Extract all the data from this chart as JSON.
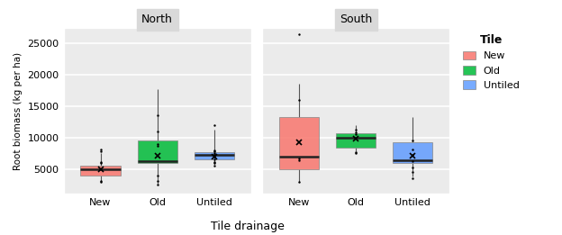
{
  "title_left": "North",
  "title_right": "South",
  "xlabel": "Tile drainage",
  "ylabel": "Root biomass (kg per ha)",
  "legend_title": "Tile",
  "legend_labels": [
    "New",
    "Old",
    "Untiled"
  ],
  "categories": [
    "New",
    "Old",
    "Untiled"
  ],
  "colors": {
    "New": "#F8766D",
    "Old": "#00BA38",
    "Untiled": "#619CFF"
  },
  "north": {
    "New": {
      "whislo": 2900,
      "q1": 3900,
      "med": 4950,
      "q3": 5500,
      "whishi": 7500,
      "mean": 4900,
      "fliers": [
        2900,
        3100,
        5900,
        6100,
        7800,
        8100
      ]
    },
    "Old": {
      "whislo": 2600,
      "q1": 6000,
      "med": 6200,
      "q3": 9500,
      "whishi": 17700,
      "mean": 7100,
      "fliers": [
        2500,
        3100,
        4000,
        8600,
        9000,
        11000,
        13500
      ]
    },
    "Untiled": {
      "whislo": 5800,
      "q1": 6500,
      "med": 7200,
      "q3": 7700,
      "whishi": 11200,
      "mean": 7000,
      "fliers": [
        5500,
        5900,
        6100,
        6500,
        7000,
        7300,
        7500,
        7800,
        8000,
        11900
      ]
    }
  },
  "south": {
    "New": {
      "whislo": 3000,
      "q1": 5000,
      "med": 7000,
      "q3": 13200,
      "whishi": 18500,
      "mean": 9200,
      "fliers": [
        3000,
        6300,
        6600,
        16000,
        26500
      ]
    },
    "Old": {
      "whislo": 7800,
      "q1": 8400,
      "med": 9900,
      "q3": 10700,
      "whishi": 11900,
      "mean": 9800,
      "fliers": [
        7500,
        7700,
        10500,
        10800,
        11200
      ]
    },
    "Untiled": {
      "whislo": 3800,
      "q1": 6000,
      "med": 6300,
      "q3": 9200,
      "whishi": 13300,
      "mean": 7100,
      "fliers": [
        3500,
        4500,
        5200,
        6200,
        7200,
        8100,
        9500
      ]
    }
  },
  "ylim": [
    1000,
    27500
  ],
  "yticks": [
    5000,
    10000,
    15000,
    20000,
    25000
  ],
  "bg_color": "#EBEBEB",
  "grid_color": "white",
  "panel_label_bg": "#D9D9D9",
  "box_width": 0.7,
  "whisker_color": "#555555"
}
